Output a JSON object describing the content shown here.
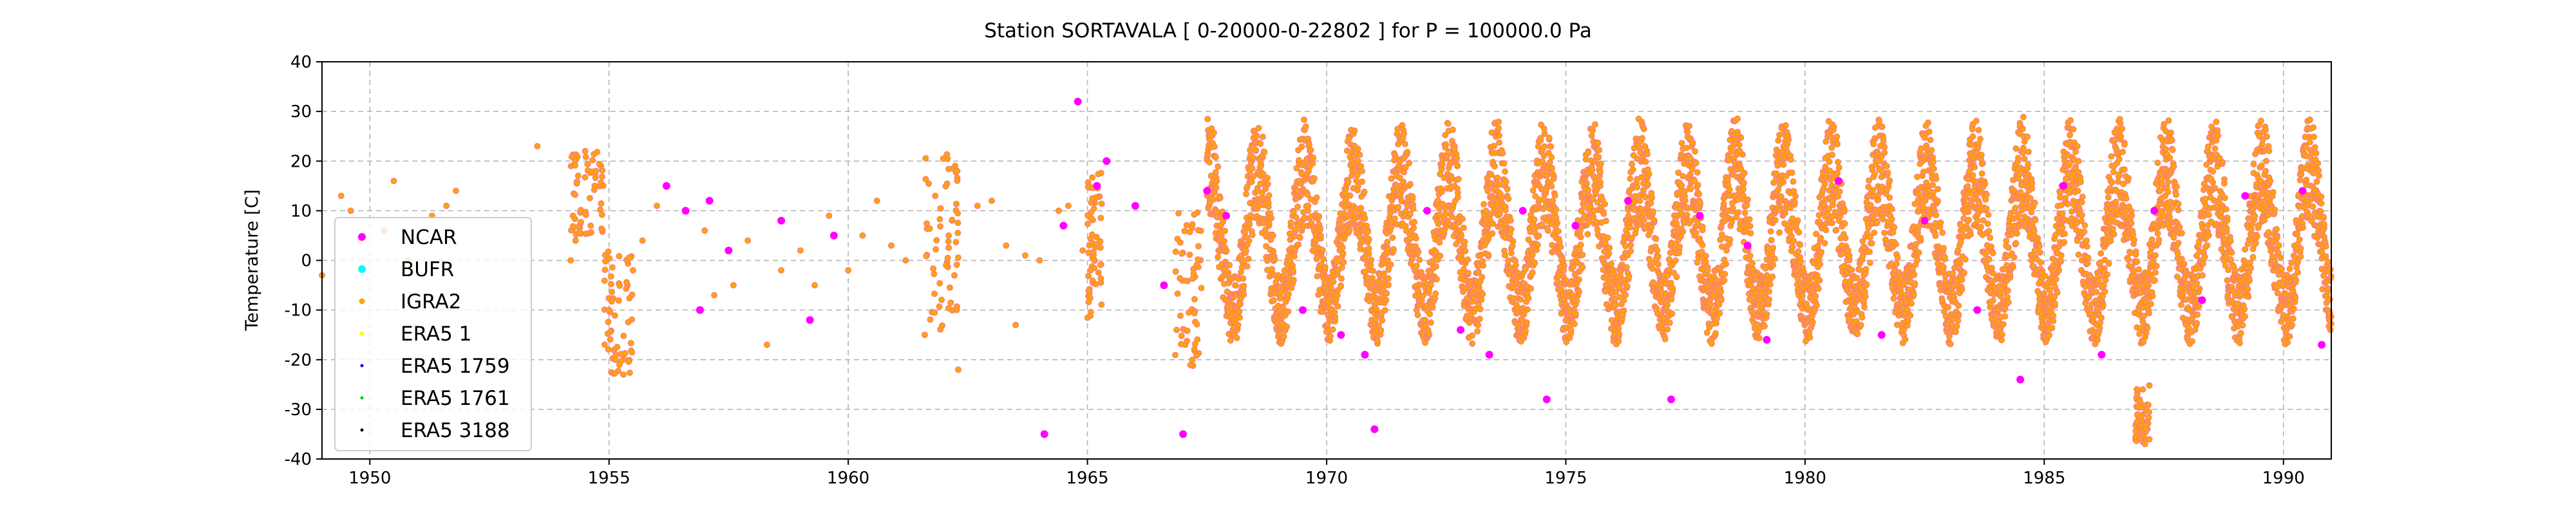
{
  "chart_data": {
    "type": "scatter",
    "title": "Station  SORTAVALA [ 0-20000-0-22802 ]  for P = 100000.0 Pa",
    "xlabel": "",
    "ylabel": "Temperature [C]",
    "xlim": [
      1949,
      1991
    ],
    "ylim": [
      -40,
      40
    ],
    "xticks": [
      "1950",
      "1955",
      "1960",
      "1965",
      "1970",
      "1975",
      "1980",
      "1985",
      "1990"
    ],
    "yticks": [
      "40",
      "30",
      "20",
      "10",
      "0",
      "-10",
      "-20",
      "-30",
      "-40"
    ],
    "grid": true,
    "legend_position": "center-left",
    "colors": {
      "NCAR": "#ff00ff",
      "BUFR": "#00ffff",
      "IGRA2": "#ffa500",
      "ERA5 1": "#ffff00",
      "ERA5 1759": "#0000ff",
      "ERA5 1761": "#00cc00",
      "ERA5 3188": "#000000",
      "overlap": "#fa8072"
    },
    "legend": [
      "NCAR",
      "BUFR",
      "IGRA2",
      "ERA5 1",
      "ERA5 1759",
      "ERA5 1761",
      "ERA5 3188"
    ],
    "series": [
      {
        "name": "NCAR",
        "points": [
          [
            1956.2,
            15
          ],
          [
            1956.6,
            10
          ],
          [
            1957.1,
            12
          ],
          [
            1956.9,
            -10
          ],
          [
            1957.5,
            2
          ],
          [
            1958.6,
            8
          ],
          [
            1959.2,
            -12
          ],
          [
            1959.7,
            5
          ],
          [
            1964.1,
            -35
          ],
          [
            1964.8,
            32
          ],
          [
            1964.5,
            7
          ],
          [
            1965.4,
            20
          ],
          [
            1965.2,
            15
          ],
          [
            1966.0,
            11
          ],
          [
            1966.6,
            -5
          ],
          [
            1967.0,
            -35
          ],
          [
            1967.5,
            14
          ],
          [
            1967.9,
            9
          ],
          [
            1969.5,
            -10
          ],
          [
            1970.3,
            -15
          ],
          [
            1970.8,
            -19
          ],
          [
            1971.0,
            -34
          ],
          [
            1972.1,
            10
          ],
          [
            1972.8,
            -14
          ],
          [
            1973.4,
            -19
          ],
          [
            1974.1,
            10
          ],
          [
            1974.6,
            -28
          ],
          [
            1975.2,
            7
          ],
          [
            1976.3,
            12
          ],
          [
            1977.2,
            -28
          ],
          [
            1977.8,
            9
          ],
          [
            1978.8,
            3
          ],
          [
            1979.2,
            -16
          ],
          [
            1980.7,
            16
          ],
          [
            1981.6,
            -15
          ],
          [
            1982.5,
            8
          ],
          [
            1983.6,
            -10
          ],
          [
            1984.5,
            -24
          ],
          [
            1985.4,
            15
          ],
          [
            1986.2,
            -19
          ],
          [
            1987.3,
            10
          ],
          [
            1988.3,
            -8
          ],
          [
            1989.2,
            13
          ],
          [
            1990.4,
            14
          ],
          [
            1990.8,
            -17
          ]
        ]
      },
      {
        "name": "IGRA2",
        "points": [
          [
            1949.0,
            -3
          ],
          [
            1949.4,
            13
          ],
          [
            1949.6,
            10
          ],
          [
            1949.8,
            4
          ],
          [
            1950.3,
            6
          ],
          [
            1950.5,
            16
          ],
          [
            1950.8,
            0
          ],
          [
            1951.3,
            9
          ],
          [
            1951.6,
            11
          ],
          [
            1951.8,
            14
          ],
          [
            1953.5,
            23
          ],
          [
            1954.2,
            0
          ],
          [
            1954.3,
            4
          ],
          [
            1954.5,
            22
          ],
          [
            1954.7,
            15
          ],
          [
            1955.0,
            -10
          ],
          [
            1955.3,
            -23
          ],
          [
            1955.5,
            -2
          ],
          [
            1955.7,
            4
          ],
          [
            1956.0,
            11
          ],
          [
            1957.0,
            6
          ],
          [
            1957.2,
            -7
          ],
          [
            1957.6,
            -5
          ],
          [
            1957.9,
            4
          ],
          [
            1958.3,
            -17
          ],
          [
            1958.6,
            -2
          ],
          [
            1959.0,
            2
          ],
          [
            1959.3,
            -5
          ],
          [
            1959.6,
            9
          ],
          [
            1960.0,
            -2
          ],
          [
            1960.3,
            5
          ],
          [
            1960.6,
            12
          ],
          [
            1960.9,
            3
          ],
          [
            1961.2,
            0
          ],
          [
            1961.6,
            -15
          ],
          [
            1962.1,
            5
          ],
          [
            1962.3,
            -22
          ],
          [
            1962.7,
            11
          ],
          [
            1963.0,
            12
          ],
          [
            1963.3,
            3
          ],
          [
            1963.5,
            -13
          ],
          [
            1963.7,
            1
          ],
          [
            1964.0,
            0
          ],
          [
            1964.4,
            10
          ],
          [
            1964.6,
            11
          ],
          [
            1964.9,
            2
          ]
        ]
      },
      {
        "name": "BUFR",
        "points": []
      },
      {
        "name": "ERA5 1",
        "points": []
      },
      {
        "name": "ERA5 1759",
        "points": []
      },
      {
        "name": "ERA5 1761",
        "points": []
      },
      {
        "name": "ERA5 3188",
        "points": []
      }
    ],
    "dense_band": {
      "series": "IGRA2",
      "x_range": [
        1967.5,
        1991
      ],
      "seasonal": true
    },
    "clusters": [
      {
        "series": "IGRA2",
        "x_range": [
          1954.2,
          1954.9
        ],
        "y_range": [
          5,
          22
        ]
      },
      {
        "series": "IGRA2",
        "x_range": [
          1954.9,
          1955.5
        ],
        "y_range": [
          -23,
          2
        ]
      },
      {
        "series": "IGRA2",
        "x_range": [
          1961.6,
          1962.3
        ],
        "y_range": [
          -15,
          24
        ]
      },
      {
        "series": "IGRA2",
        "x_range": [
          1965.0,
          1965.3
        ],
        "y_range": [
          -12,
          18
        ]
      },
      {
        "series": "IGRA2",
        "x_range": [
          1966.8,
          1967.4
        ],
        "y_range": [
          -22,
          10
        ]
      },
      {
        "series": "IGRA2",
        "x_range": [
          1986.9,
          1987.2
        ],
        "y_range": [
          -37,
          -25
        ]
      }
    ]
  }
}
